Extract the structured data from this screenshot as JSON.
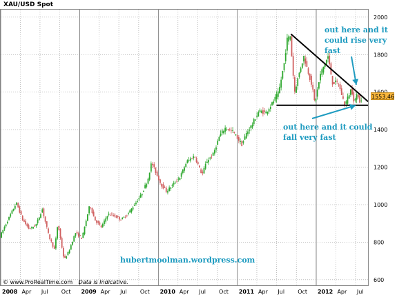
{
  "chart_data": {
    "type": "candlestick",
    "title": "XAU/USD Spot",
    "last_price": "1553.46",
    "ylim": [
      570,
      2040
    ],
    "y_ticks": [
      600,
      800,
      1000,
      1200,
      1400,
      1600,
      1800,
      2000
    ],
    "x_start": "2008-01-01",
    "x_end": "2012-08-31",
    "x_ticks": [
      {
        "label": "2008",
        "date": "2008-01-01",
        "year": true
      },
      {
        "label": "Apr",
        "date": "2008-04-01"
      },
      {
        "label": "Jul",
        "date": "2008-07-01"
      },
      {
        "label": "Oct",
        "date": "2008-10-01"
      },
      {
        "label": "2009",
        "date": "2009-01-01",
        "year": true
      },
      {
        "label": "Apr",
        "date": "2009-04-01"
      },
      {
        "label": "Jul",
        "date": "2009-07-01"
      },
      {
        "label": "Oct",
        "date": "2009-10-01"
      },
      {
        "label": "2010",
        "date": "2010-01-01",
        "year": true
      },
      {
        "label": "Apr",
        "date": "2010-04-01"
      },
      {
        "label": "Jul",
        "date": "2010-07-01"
      },
      {
        "label": "Oct",
        "date": "2010-10-01"
      },
      {
        "label": "2011",
        "date": "2011-01-01",
        "year": true
      },
      {
        "label": "Apr",
        "date": "2011-04-01"
      },
      {
        "label": "Jul",
        "date": "2011-07-01"
      },
      {
        "label": "Oct",
        "date": "2011-10-01"
      },
      {
        "label": "2012",
        "date": "2012-01-01",
        "year": true
      },
      {
        "label": "Apr",
        "date": "2012-04-01"
      },
      {
        "label": "Jul",
        "date": "2012-07-01"
      }
    ],
    "series": [
      {
        "points": [
          [
            "2008-01-01",
            830
          ],
          [
            "2008-02-01",
            905
          ],
          [
            "2008-03-17",
            1010
          ],
          [
            "2008-04-15",
            920
          ],
          [
            "2008-05-15",
            870
          ],
          [
            "2008-06-15",
            890
          ],
          [
            "2008-07-15",
            975
          ],
          [
            "2008-08-15",
            830
          ],
          [
            "2008-09-10",
            760
          ],
          [
            "2008-09-25",
            900
          ],
          [
            "2008-10-24",
            705
          ],
          [
            "2008-11-15",
            750
          ],
          [
            "2008-12-15",
            850
          ],
          [
            "2009-01-15",
            820
          ],
          [
            "2009-02-20",
            1000
          ],
          [
            "2009-03-15",
            920
          ],
          [
            "2009-04-15",
            880
          ],
          [
            "2009-05-15",
            950
          ],
          [
            "2009-06-15",
            940
          ],
          [
            "2009-07-15",
            920
          ],
          [
            "2009-08-15",
            950
          ],
          [
            "2009-09-15",
            1000
          ],
          [
            "2009-10-15",
            1050
          ],
          [
            "2009-11-15",
            1130
          ],
          [
            "2009-12-03",
            1225
          ],
          [
            "2010-01-15",
            1110
          ],
          [
            "2010-02-10",
            1070
          ],
          [
            "2010-03-15",
            1110
          ],
          [
            "2010-04-15",
            1150
          ],
          [
            "2010-05-15",
            1230
          ],
          [
            "2010-06-20",
            1260
          ],
          [
            "2010-07-25",
            1160
          ],
          [
            "2010-08-15",
            1230
          ],
          [
            "2010-09-15",
            1270
          ],
          [
            "2010-10-15",
            1370
          ],
          [
            "2010-11-10",
            1410
          ],
          [
            "2010-12-15",
            1390
          ],
          [
            "2011-01-25",
            1320
          ],
          [
            "2011-02-15",
            1380
          ],
          [
            "2011-03-15",
            1430
          ],
          [
            "2011-04-15",
            1500
          ],
          [
            "2011-05-15",
            1490
          ],
          [
            "2011-06-15",
            1540
          ],
          [
            "2011-07-15",
            1600
          ],
          [
            "2011-08-10",
            1760
          ],
          [
            "2011-08-22",
            1880
          ],
          [
            "2011-09-06",
            1900
          ],
          [
            "2011-09-26",
            1600
          ],
          [
            "2011-10-15",
            1690
          ],
          [
            "2011-11-08",
            1790
          ],
          [
            "2011-12-15",
            1640
          ],
          [
            "2011-12-29",
            1540
          ],
          [
            "2012-01-25",
            1700
          ],
          [
            "2012-02-28",
            1790
          ],
          [
            "2012-03-20",
            1650
          ],
          [
            "2012-04-15",
            1650
          ],
          [
            "2012-05-16",
            1530
          ],
          [
            "2012-06-15",
            1620
          ],
          [
            "2012-06-28",
            1550
          ],
          [
            "2012-07-15",
            1590
          ],
          [
            "2012-07-24",
            1553
          ]
        ]
      }
    ],
    "trendlines": [
      {
        "name": "resistance",
        "from": [
          "2011-09-06",
          1910
        ],
        "to": [
          "2012-08-28",
          1550
        ]
      },
      {
        "name": "support",
        "from": [
          "2011-07-01",
          1530
        ],
        "to": [
          "2012-08-28",
          1530
        ]
      }
    ],
    "colors": {
      "up": "#2fa82f",
      "down": "#d06060",
      "grid": "#9a9a9a",
      "trendline": "#000000",
      "annotation": "#1e9bc0",
      "price_tag": "#f7b53b"
    }
  },
  "annotations": {
    "rise": "out here and it could rise very fast",
    "fall": "out here and it could fall very fast"
  },
  "watermark": "hubertmoolman.wordpress.com",
  "footer": {
    "copyright": "© www.ProRealTime.com",
    "note": "Data is Indicative."
  }
}
